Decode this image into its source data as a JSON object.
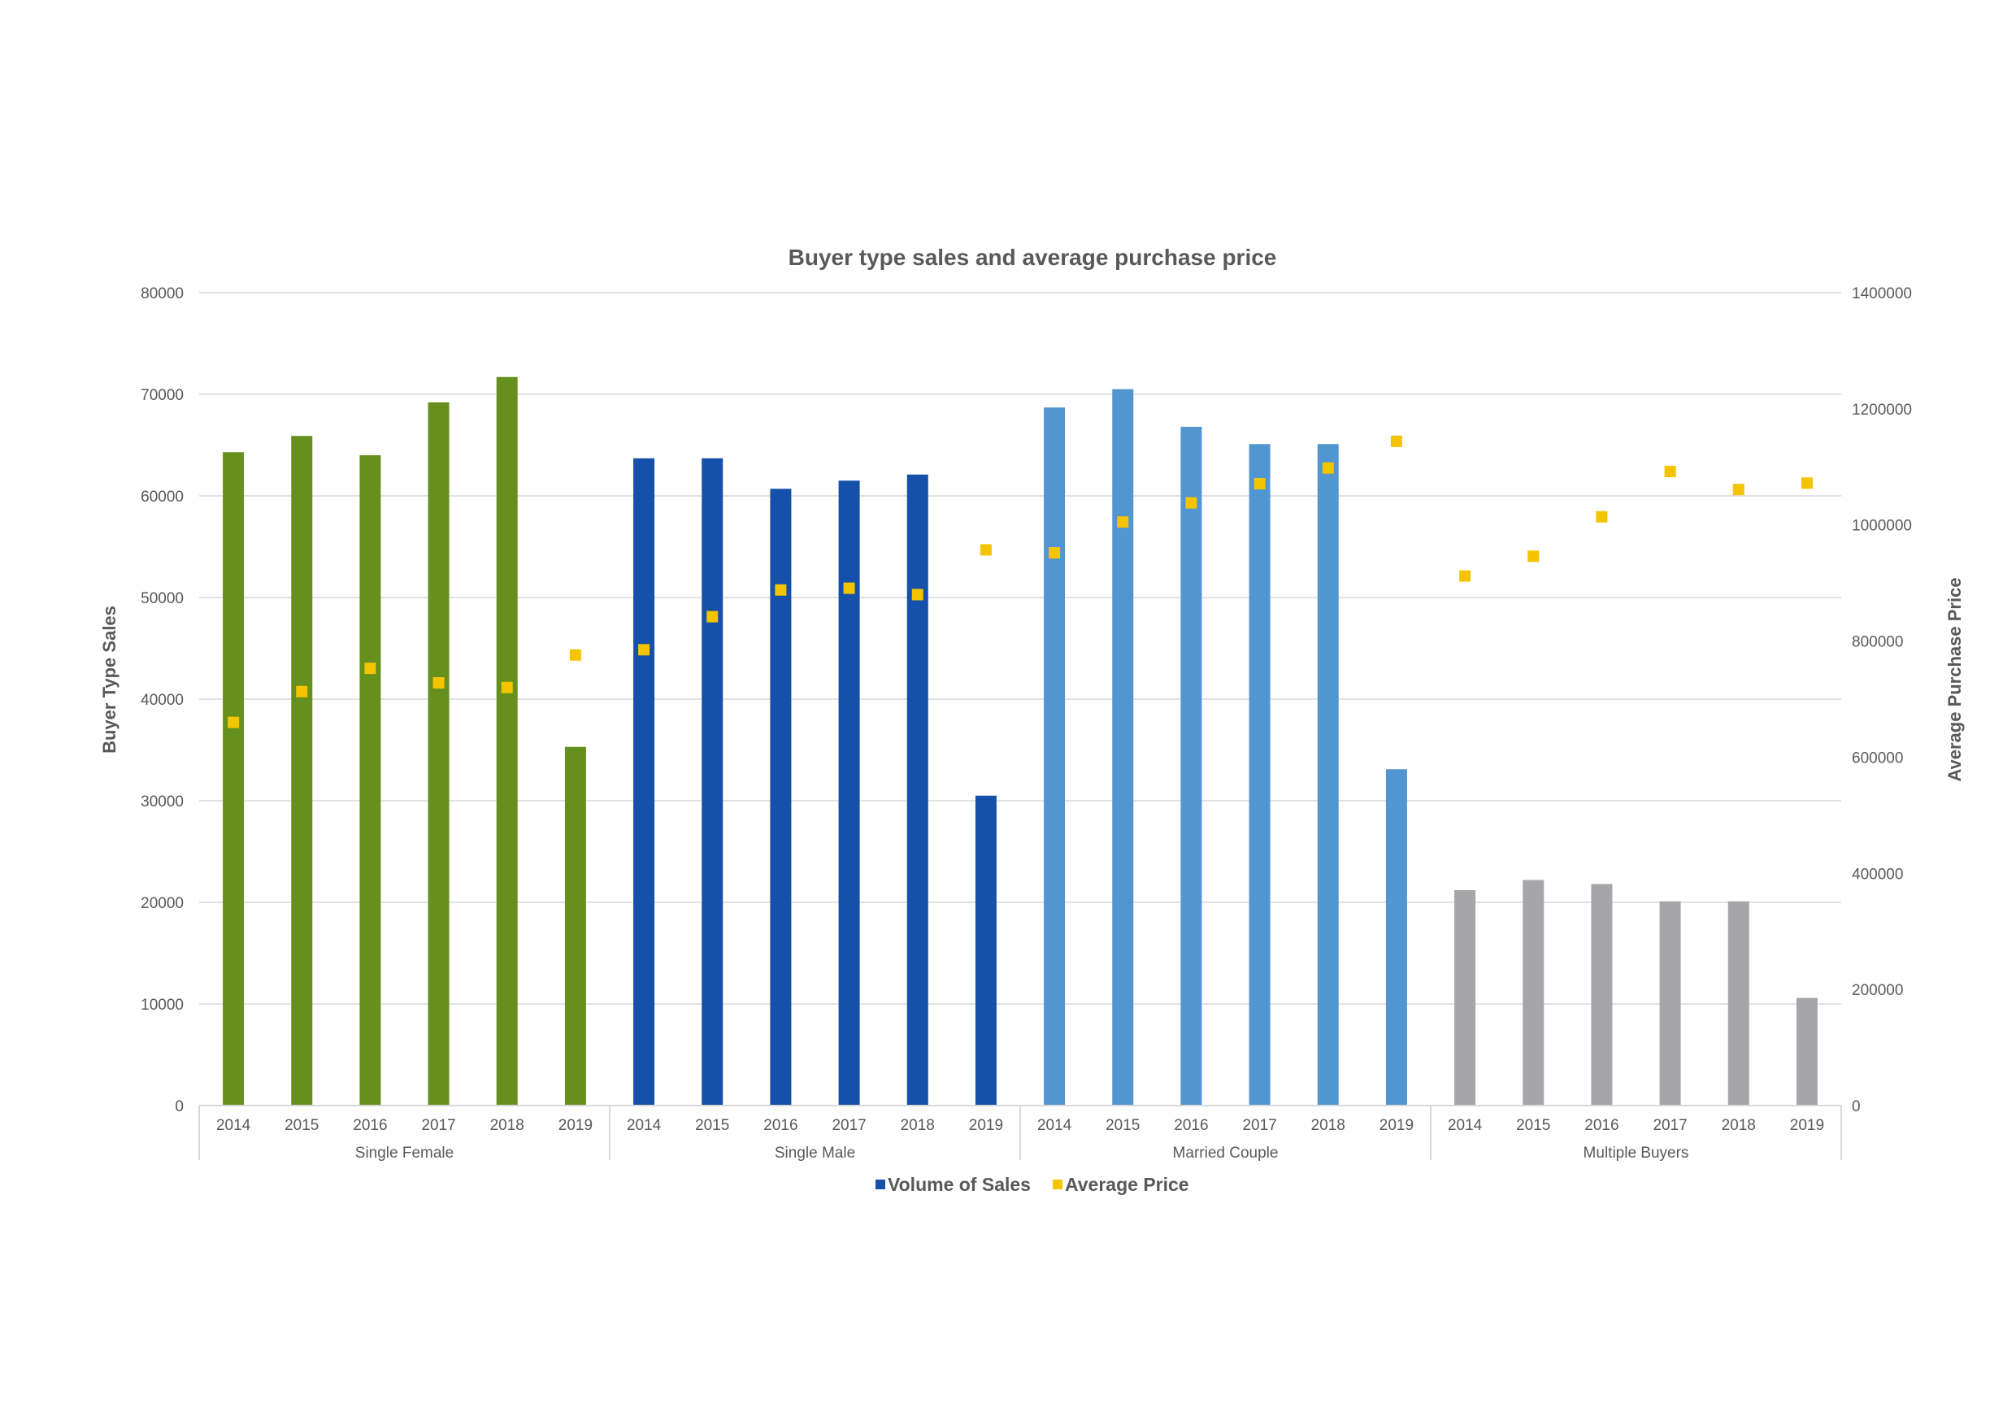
{
  "chart_data": {
    "type": "bar",
    "title": "Buyer type sales and average purchase price",
    "ylabel": "Buyer Type  Sales",
    "y2label": "Average Purchase Price",
    "ylim": [
      0,
      80000
    ],
    "y2lim": [
      0,
      1400000
    ],
    "yticks": [
      "0",
      "10000",
      "20000",
      "30000",
      "40000",
      "50000",
      "60000",
      "70000",
      "80000"
    ],
    "y2ticks": [
      "0",
      "200000",
      "400000",
      "600000",
      "800000",
      "1000000",
      "1200000",
      "1400000"
    ],
    "years": [
      "2014",
      "2015",
      "2016",
      "2017",
      "2018",
      "2019"
    ],
    "groups": [
      {
        "name": "Single Female",
        "color": "#66901e",
        "volume": [
          64300,
          65900,
          64000,
          69200,
          71700,
          35300
        ],
        "price": [
          660000,
          713000,
          753000,
          728000,
          720000,
          776000
        ]
      },
      {
        "name": "Single Male",
        "color": "#1551aa",
        "volume": [
          63700,
          63700,
          60700,
          61500,
          62100,
          30500
        ],
        "price": [
          785000,
          842000,
          888000,
          891000,
          880000,
          957000
        ]
      },
      {
        "name": "Married Couple",
        "color": "#5296d1",
        "volume": [
          68700,
          70500,
          66800,
          65100,
          65100,
          33100
        ],
        "price": [
          952000,
          1005000,
          1038000,
          1071000,
          1098000,
          1144000
        ]
      },
      {
        "name": "Multiple Buyers",
        "color": "#a6a6a8",
        "volume": [
          21200,
          22200,
          21800,
          20100,
          20100,
          10600
        ],
        "price": [
          912000,
          946000,
          1014000,
          1092000,
          1061000,
          1072000
        ]
      }
    ],
    "legend": {
      "position": "bottom",
      "items": [
        {
          "label": "Volume of Sales",
          "color": "#1551aa"
        },
        {
          "label": "Average Price",
          "color": "#f5c400"
        }
      ]
    },
    "price_marker_color": "#f5c400",
    "grid": true
  }
}
